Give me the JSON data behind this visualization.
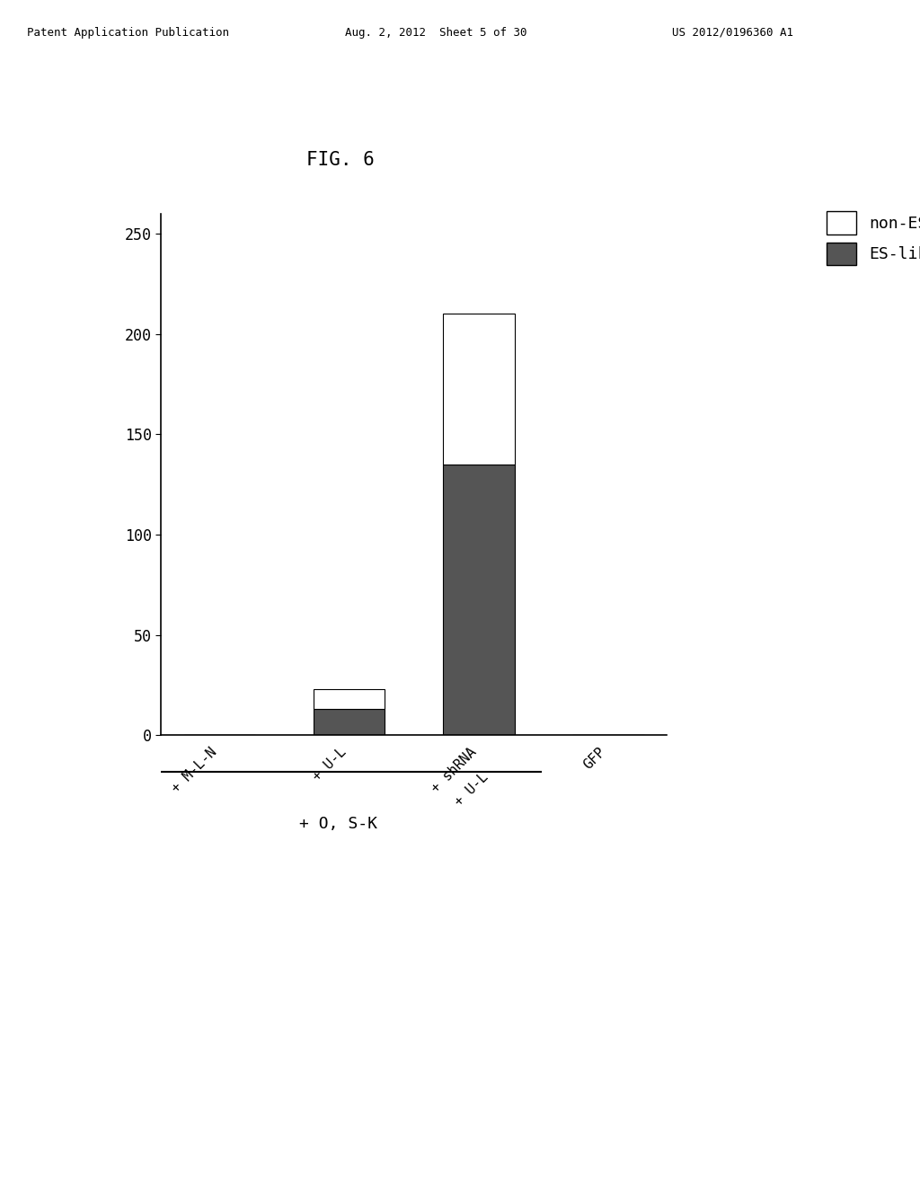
{
  "categories": [
    "+ M-L-N",
    "+ U-L",
    "+ shRNA\n+ U-L",
    "GFP"
  ],
  "es_like": [
    0,
    13,
    135,
    0
  ],
  "non_es": [
    0,
    10,
    75,
    0
  ],
  "es_like_color": "#555555",
  "non_es_color": "#ffffff",
  "bar_edge_color": "#000000",
  "bar_width": 0.55,
  "ylim": [
    0,
    260
  ],
  "yticks": [
    0,
    50,
    100,
    150,
    200,
    250
  ],
  "fig_title": "FIG. 6",
  "legend_labels": [
    "non-ES",
    "ES-like"
  ],
  "legend_colors": [
    "#ffffff",
    "#555555"
  ],
  "xlabel_main": "+ O, S-K",
  "background_color": "#ffffff",
  "header_text": "Patent Application Publication",
  "header_date": "Aug. 2, 2012  Sheet 5 of 30",
  "header_patent": "US 2012/0196360 A1"
}
